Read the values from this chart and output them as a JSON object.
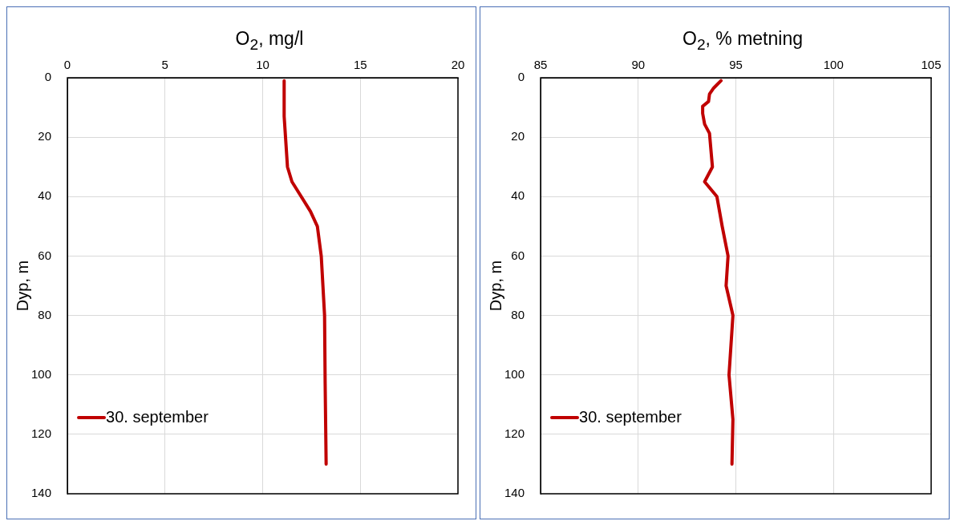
{
  "chart_data": [
    {
      "type": "line",
      "title": "O$_{2}$, mg/l",
      "ylabel": "Dyp, m",
      "xlim": [
        0,
        20
      ],
      "xticks": [
        0,
        5,
        10,
        15,
        20
      ],
      "ylim": [
        140,
        0
      ],
      "yticks": [
        0,
        20,
        40,
        60,
        80,
        100,
        120,
        140
      ],
      "grid": true,
      "legend": "bottom left",
      "marker": "none",
      "line_style": "solid",
      "series": [
        {
          "name": "30. september",
          "color": "#c00000",
          "x": [
            11.1,
            11.1,
            11.27,
            11.5,
            12.45,
            12.8,
            13.0,
            13.17,
            13.2,
            13.25
          ],
          "values": [
            1,
            13,
            30,
            35,
            45,
            50,
            60,
            80,
            103,
            130
          ]
        }
      ]
    },
    {
      "type": "line",
      "title": "O$_{2}$, % metning",
      "ylabel": "Dyp, m",
      "xlim": [
        85,
        105
      ],
      "xticks": [
        85,
        90,
        95,
        100,
        105
      ],
      "ylim": [
        140,
        0
      ],
      "yticks": [
        0,
        20,
        40,
        60,
        80,
        100,
        120,
        140
      ],
      "grid": true,
      "legend": "bottom left",
      "marker": "none",
      "line_style": "solid",
      "series": [
        {
          "name": "30. september",
          "color": "#c00000",
          "x": [
            94.24,
            93.86,
            93.65,
            93.6,
            93.3,
            93.3,
            93.4,
            93.65,
            93.8,
            93.4,
            94.03,
            94.3,
            94.6,
            94.5,
            94.85,
            94.65,
            94.85,
            94.8
          ],
          "values": [
            1,
            3.5,
            5.5,
            8,
            9.6,
            12,
            15.6,
            18.7,
            30,
            35,
            40,
            50,
            60,
            70,
            80,
            100,
            115,
            130
          ]
        }
      ]
    }
  ]
}
